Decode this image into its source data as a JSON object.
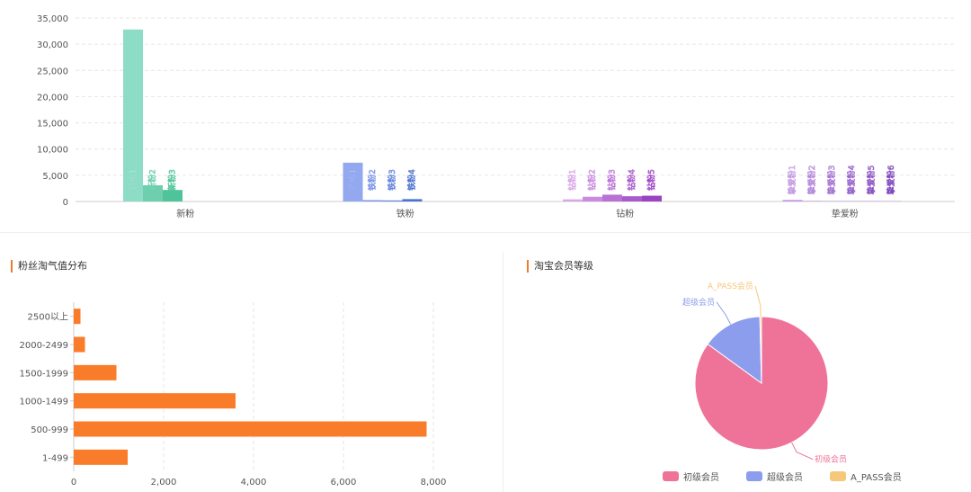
{
  "fan_chart": {
    "chart_data": {
      "type": "bar",
      "categories": [
        "新粉",
        "铁粉",
        "钻粉",
        "挚爱粉"
      ],
      "ylim": [
        0,
        35000
      ],
      "yticks": [
        "0",
        "5,000",
        "10,000",
        "15,000",
        "20,000",
        "25,000",
        "30,000",
        "35,000"
      ],
      "tick_values": [
        0,
        5000,
        10000,
        15000,
        20000,
        25000,
        30000,
        35000
      ],
      "groups": [
        {
          "category": "新粉",
          "bars": [
            {
              "label": "新粉1",
              "value": 32800,
              "color": "#8ddcc6"
            },
            {
              "label": "新粉2",
              "value": 3100,
              "color": "#6dcfae"
            },
            {
              "label": "新粉3",
              "value": 2200,
              "color": "#4fc49a"
            }
          ]
        },
        {
          "category": "铁粉",
          "bars": [
            {
              "label": "铁粉1",
              "value": 7400,
              "color": "#93a8ef"
            },
            {
              "label": "铁粉2",
              "value": 250,
              "color": "#7b93e6"
            },
            {
              "label": "铁粉3",
              "value": 200,
              "color": "#6483db"
            },
            {
              "label": "铁粉4",
              "value": 450,
              "color": "#4d72d0"
            }
          ]
        },
        {
          "category": "钻粉",
          "bars": [
            {
              "label": "钻粉1",
              "value": 400,
              "color": "#d8a6e9"
            },
            {
              "label": "钻粉2",
              "value": 900,
              "color": "#c88be0"
            },
            {
              "label": "钻粉3",
              "value": 1300,
              "color": "#b872d6"
            },
            {
              "label": "钻粉4",
              "value": 1000,
              "color": "#a95acc"
            },
            {
              "label": "钻粉5",
              "value": 1100,
              "color": "#9b44c3"
            }
          ]
        },
        {
          "category": "挚爱粉",
          "bars": [
            {
              "label": "挚爱粉1",
              "value": 300,
              "color": "#c49be3"
            },
            {
              "label": "挚爱粉2",
              "value": 100,
              "color": "#b587dc"
            },
            {
              "label": "挚爱粉3",
              "value": 60,
              "color": "#a674d4"
            },
            {
              "label": "挚爱粉4",
              "value": 50,
              "color": "#9762cc"
            },
            {
              "label": "挚爱粉5",
              "value": 40,
              "color": "#8a52c4"
            },
            {
              "label": "挚爱粉6",
              "value": 30,
              "color": "#7d44bc"
            }
          ]
        }
      ]
    }
  },
  "taoqi_chart": {
    "title": "粉丝淘气值分布",
    "chart_data": {
      "type": "bar",
      "orientation": "horizontal",
      "categories": [
        "2500以上",
        "2000-2499",
        "1500-1999",
        "1000-1499",
        "500-999",
        "1-499"
      ],
      "values": [
        150,
        250,
        950,
        3600,
        7850,
        1200
      ],
      "xlim": [
        0,
        8000
      ],
      "xticks": [
        "0",
        "2,000",
        "4,000",
        "6,000",
        "8,000"
      ],
      "tick_values": [
        0,
        2000,
        4000,
        6000,
        8000
      ],
      "color": "#f97c2a"
    }
  },
  "member_chart": {
    "title": "淘宝会员等级",
    "chart_data": {
      "type": "pie",
      "slices": [
        {
          "label": "初级会员",
          "value": 85,
          "color": "#ef7399"
        },
        {
          "label": "超级会员",
          "value": 14.6,
          "color": "#8c9ded"
        },
        {
          "label": "A_PASS会员",
          "value": 0.4,
          "color": "#f5c87a"
        }
      ],
      "legend": [
        "初级会员",
        "超级会员",
        "A_PASS会员"
      ],
      "legend_position": "bottom"
    }
  }
}
